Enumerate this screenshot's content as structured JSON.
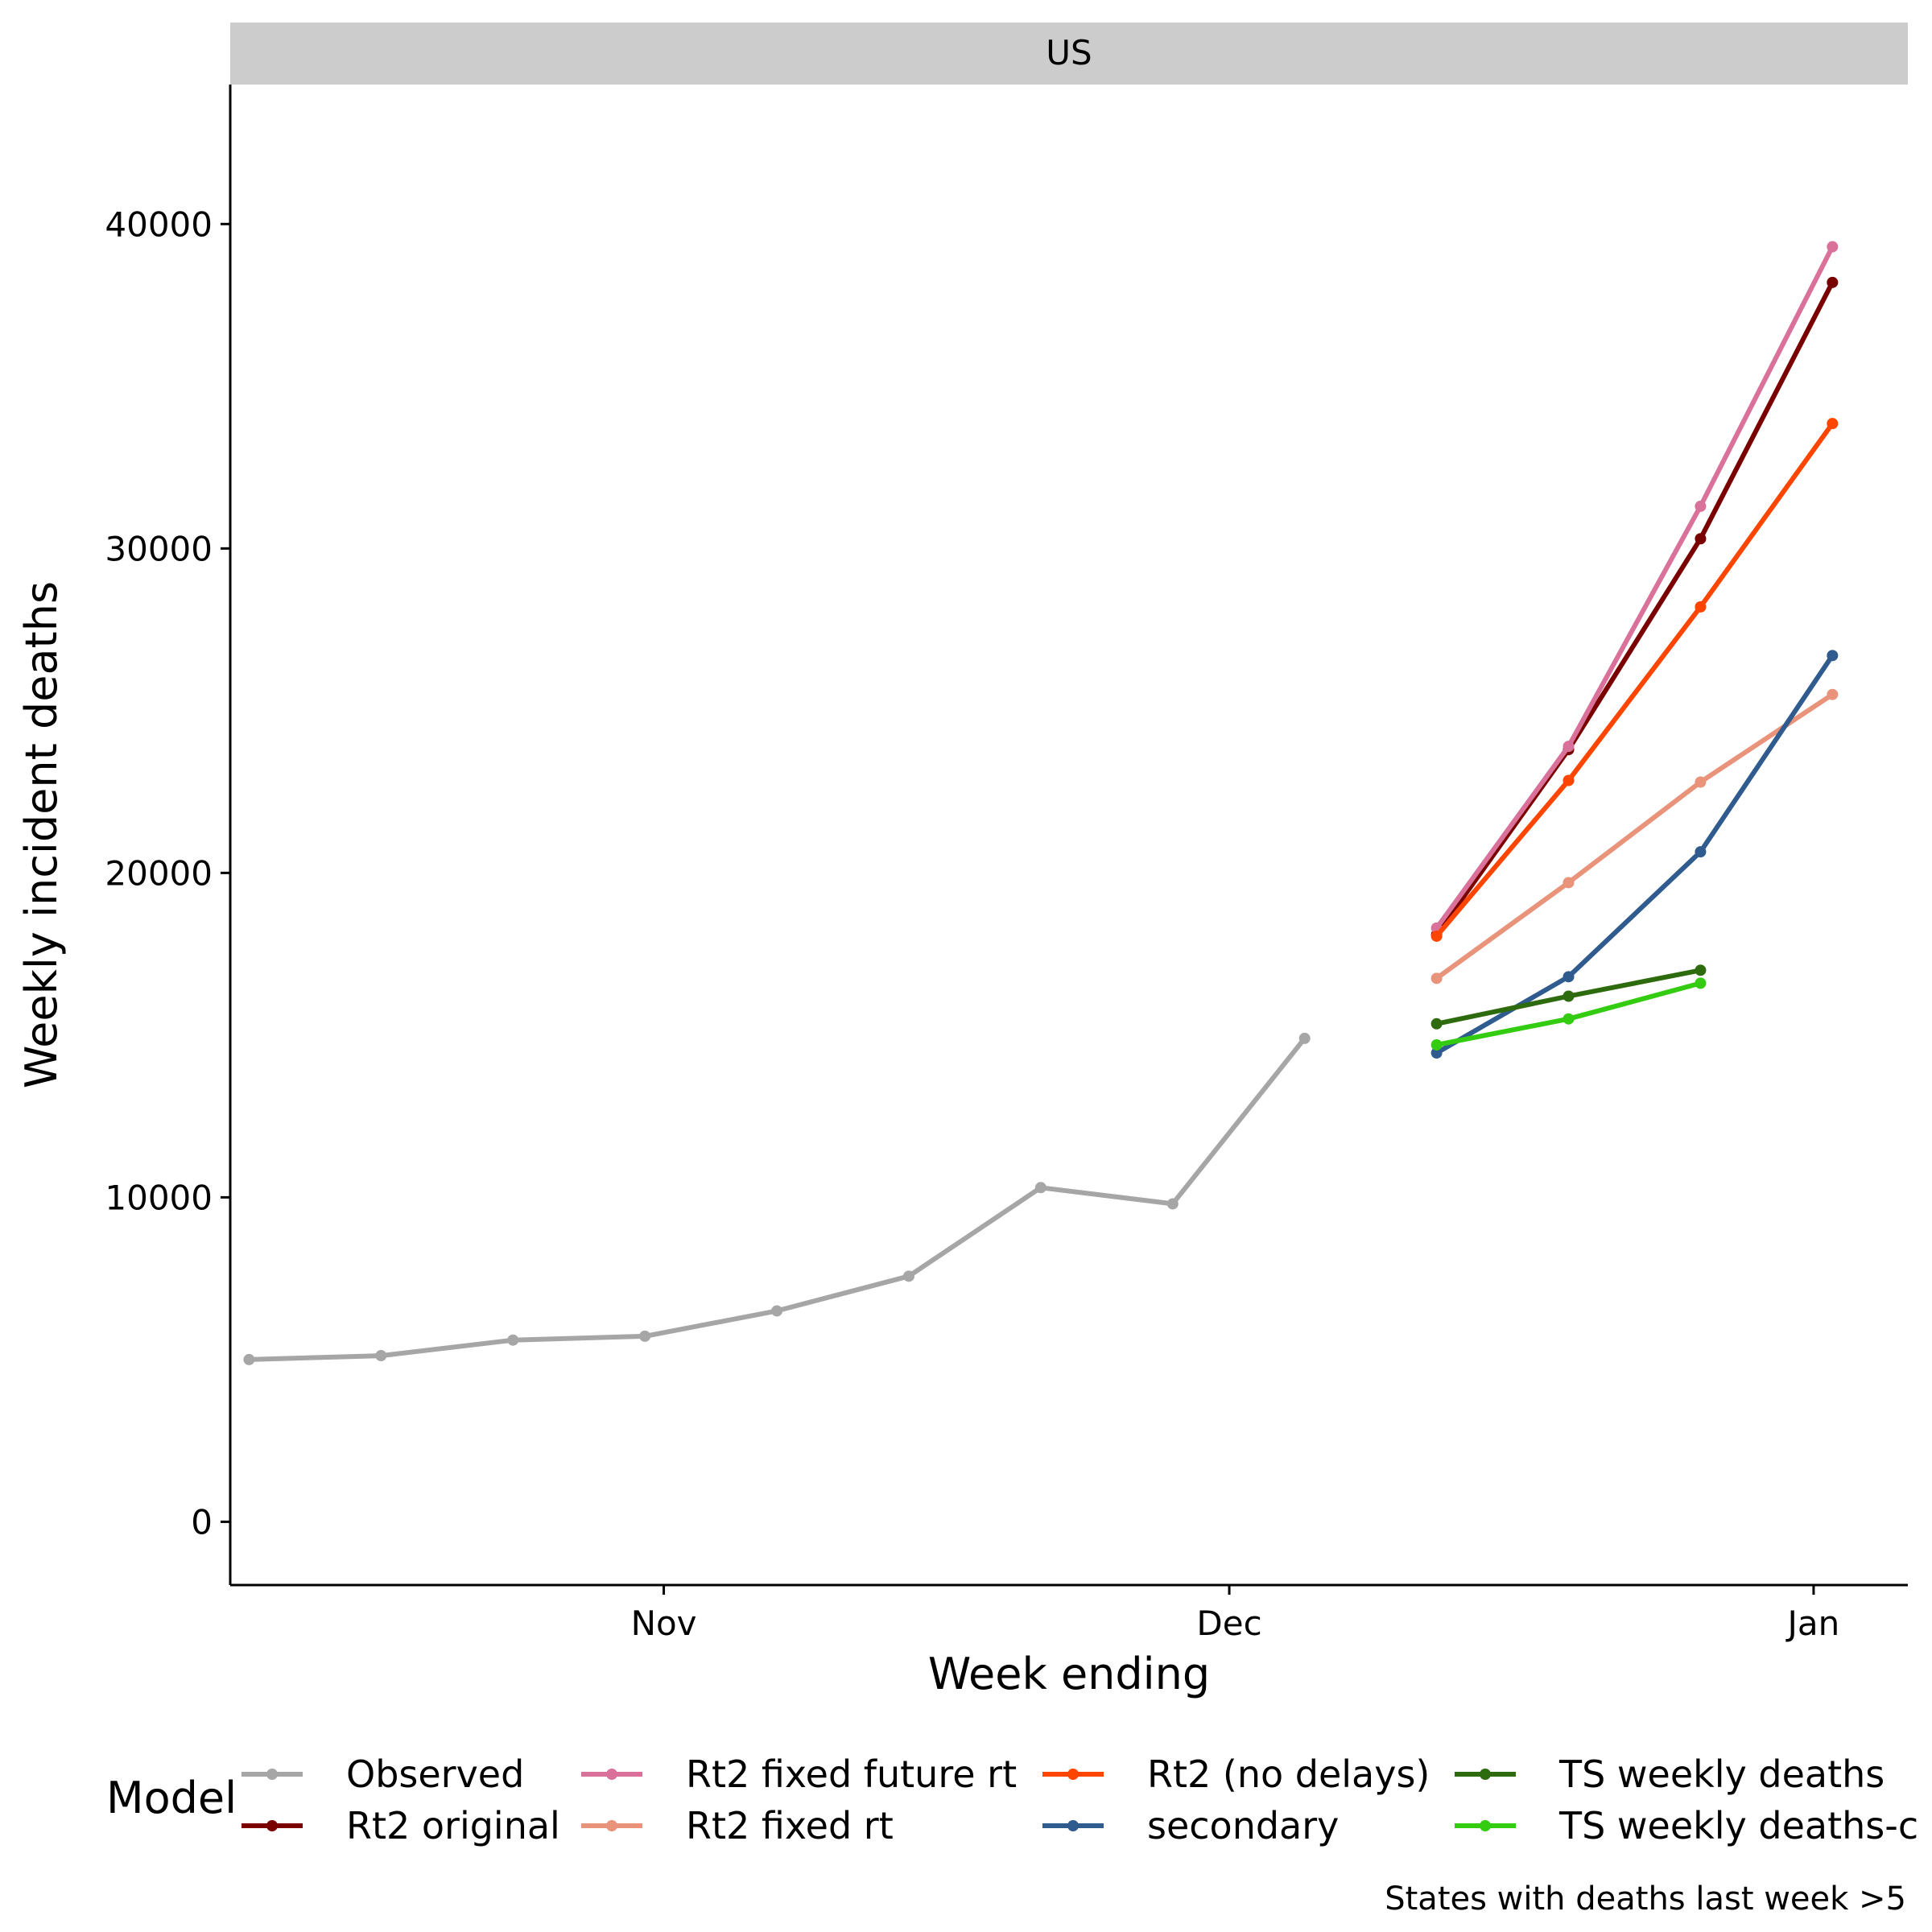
{
  "chart_data": {
    "type": "line",
    "facet_label": "US",
    "xlabel": "Week ending",
    "ylabel": "Weekly incident deaths",
    "x_tick_labels": [
      "Nov",
      "Dec",
      "Jan"
    ],
    "x_tick_dates": [
      "2020-11-01",
      "2020-12-01",
      "2021-01-01"
    ],
    "xlim": [
      "2020-10-09",
      "2021-01-06"
    ],
    "y_ticks": [
      0,
      10000,
      20000,
      30000,
      40000
    ],
    "ylim": [
      -1950,
      44300
    ],
    "grid": false,
    "legend": {
      "title": "Model",
      "position": "bottom",
      "entries": [
        {
          "series": "Observed",
          "label": "Observed"
        },
        {
          "series": "Rt2 original",
          "label": "Rt2 original"
        },
        {
          "series": "Rt2 fixed future rt",
          "label": "Rt2 fixed future rt"
        },
        {
          "series": "Rt2 fixed rt",
          "label": "Rt2 fixed rt"
        },
        {
          "series": "Rt2 (no delays)",
          "label": "Rt2 (no delays)"
        },
        {
          "series": "secondary",
          "label": "secondary"
        },
        {
          "series": "TS weekly deaths",
          "label": "TS weekly deaths"
        },
        {
          "series": "TS weekly deaths-only",
          "label": "TS weekly deaths-c"
        }
      ]
    },
    "caption": "States with deaths last week >5",
    "series": [
      {
        "name": "Observed",
        "color": "#a6a6a6",
        "x": [
          "2020-10-10",
          "2020-10-17",
          "2020-10-24",
          "2020-10-31",
          "2020-11-07",
          "2020-11-14",
          "2020-11-21",
          "2020-11-28",
          "2020-12-05"
        ],
        "y": [
          5000,
          5120,
          5600,
          5720,
          6500,
          7570,
          10300,
          9800,
          14900
        ]
      },
      {
        "name": "Rt2 original",
        "color": "#7a0000",
        "x": [
          "2020-12-12",
          "2020-12-19",
          "2020-12-26",
          "2021-01-02"
        ],
        "y": [
          18100,
          23800,
          30300,
          38200
        ]
      },
      {
        "name": "Rt2 fixed future rt",
        "color": "#d9719a",
        "x": [
          "2020-12-12",
          "2020-12-19",
          "2020-12-26",
          "2021-01-02"
        ],
        "y": [
          18300,
          23900,
          31300,
          39300
        ]
      },
      {
        "name": "Rt2 fixed rt",
        "color": "#e8937a",
        "x": [
          "2020-12-12",
          "2020-12-19",
          "2020-12-26",
          "2021-01-02"
        ],
        "y": [
          16750,
          19700,
          22800,
          25500
        ]
      },
      {
        "name": "Rt2 (no delays)",
        "color": "#ff4500",
        "x": [
          "2020-12-12",
          "2020-12-19",
          "2020-12-26",
          "2021-01-02"
        ],
        "y": [
          18050,
          22850,
          28200,
          33850
        ]
      },
      {
        "name": "secondary",
        "color": "#2f5b8f",
        "x": [
          "2020-12-12",
          "2020-12-19",
          "2020-12-26",
          "2021-01-02"
        ],
        "y": [
          14450,
          16800,
          20650,
          26700
        ]
      },
      {
        "name": "TS weekly deaths",
        "color": "#2e6b0e",
        "x": [
          "2020-12-12",
          "2020-12-19",
          "2020-12-26"
        ],
        "y": [
          15350,
          16200,
          17000
        ]
      },
      {
        "name": "TS weekly deaths-only",
        "color": "#33cc11",
        "x": [
          "2020-12-12",
          "2020-12-19",
          "2020-12-26"
        ],
        "y": [
          14700,
          15500,
          16600
        ]
      }
    ]
  }
}
